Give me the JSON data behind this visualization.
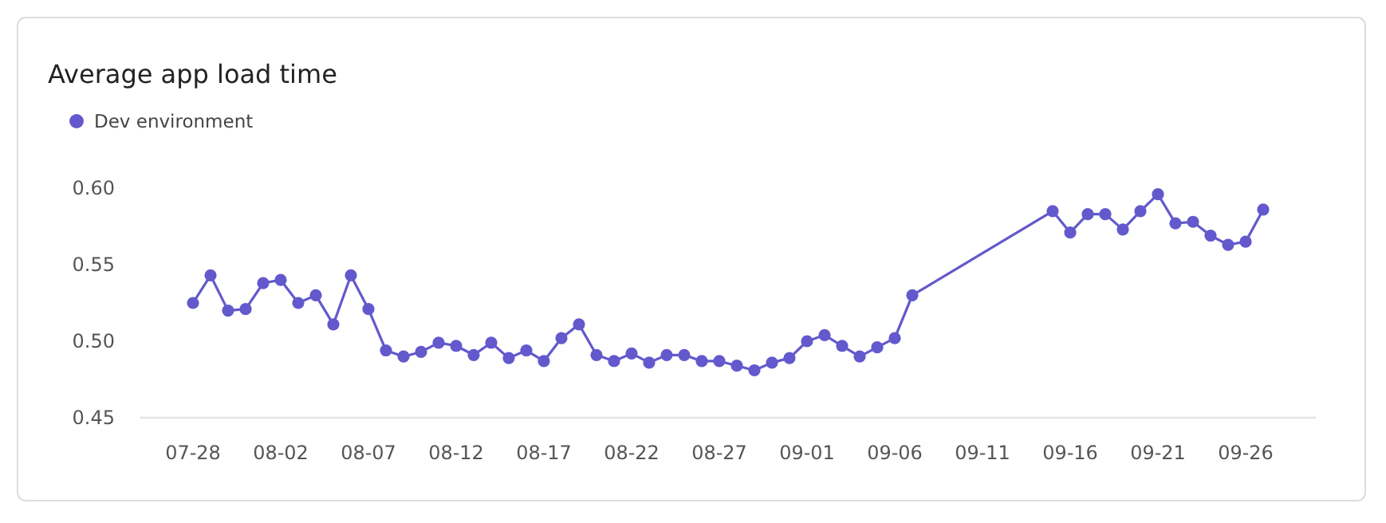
{
  "chart_data": {
    "type": "line",
    "title": "Average app load time",
    "legend": "top left",
    "marker": "circle",
    "line_style": "solid",
    "grid": false,
    "x": [
      "--07-28",
      "--07-29",
      "--07-30",
      "--07-31",
      "--08-01",
      "--08-02",
      "--08-03",
      "--08-04",
      "--08-05",
      "--08-06",
      "--08-07",
      "--08-08",
      "--08-09",
      "--08-10",
      "--08-11",
      "--08-12",
      "--08-13",
      "--08-14",
      "--08-15",
      "--08-16",
      "--08-17",
      "--08-18",
      "--08-19",
      "--08-20",
      "--08-21",
      "--08-22",
      "--08-23",
      "--08-24",
      "--08-25",
      "--08-26",
      "--08-27",
      "--08-28",
      "--08-29",
      "--08-30",
      "--08-31",
      "--09-01",
      "--09-02",
      "--09-03",
      "--09-04",
      "--09-05",
      "--09-06",
      "--09-07",
      "--09-15",
      "--09-16",
      "--09-17",
      "--09-18",
      "--09-19",
      "--09-20",
      "--09-21",
      "--09-22",
      "--09-23",
      "--09-24",
      "--09-25",
      "--09-26",
      "--09-27"
    ],
    "series": [
      {
        "name": "Dev environment",
        "color": "#6359cc",
        "values": [
          0.525,
          0.543,
          0.52,
          0.521,
          0.538,
          0.54,
          0.525,
          0.53,
          0.511,
          0.543,
          0.521,
          0.494,
          0.49,
          0.493,
          0.499,
          0.497,
          0.491,
          0.499,
          0.489,
          0.494,
          0.487,
          0.502,
          0.511,
          0.491,
          0.487,
          0.492,
          0.486,
          0.491,
          0.491,
          0.487,
          0.487,
          0.484,
          0.481,
          0.486,
          0.489,
          0.5,
          0.504,
          0.497,
          0.49,
          0.496,
          0.502,
          0.53,
          0.585,
          0.571,
          0.583,
          0.583,
          0.573,
          0.585,
          0.596,
          0.577,
          0.578,
          0.569,
          0.563,
          0.565,
          0.586
        ]
      }
    ],
    "xlim": [
      "--07-25",
      "--09-30"
    ],
    "xticks": [
      {
        "value": "--07-28",
        "label": "07-28"
      },
      {
        "value": "--08-02",
        "label": "08-02"
      },
      {
        "value": "--08-07",
        "label": "08-07"
      },
      {
        "value": "--08-12",
        "label": "08-12"
      },
      {
        "value": "--08-17",
        "label": "08-17"
      },
      {
        "value": "--08-22",
        "label": "08-22"
      },
      {
        "value": "--08-27",
        "label": "08-27"
      },
      {
        "value": "--09-01",
        "label": "09-01"
      },
      {
        "value": "--09-06",
        "label": "09-06"
      },
      {
        "value": "--09-11",
        "label": "09-11"
      },
      {
        "value": "--09-16",
        "label": "09-16"
      },
      {
        "value": "--09-21",
        "label": "09-21"
      },
      {
        "value": "--09-26",
        "label": "09-26"
      }
    ],
    "ylim": [
      0.45,
      0.6
    ],
    "yticks": [
      0.45,
      {
        "value": 0.5,
        "label": "0.50"
      },
      0.55,
      {
        "value": 0.6,
        "label": "0.60"
      }
    ]
  }
}
